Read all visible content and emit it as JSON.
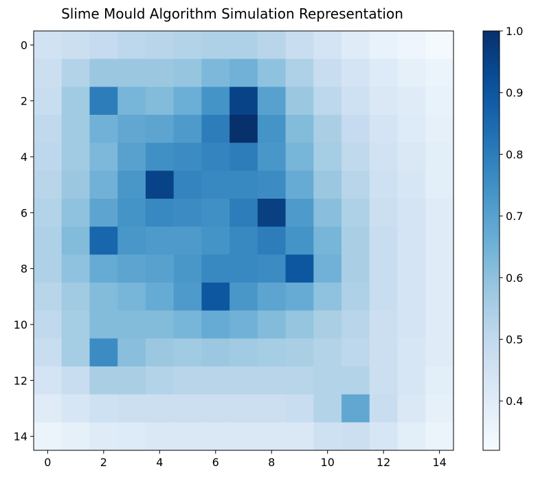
{
  "chart_data": {
    "type": "heatmap",
    "title": "Slime Mould Algorithm Simulation Representation",
    "colormap": "Blues",
    "x_ticks": [
      0,
      2,
      4,
      6,
      8,
      10,
      12,
      14
    ],
    "y_ticks": [
      0,
      2,
      4,
      6,
      8,
      10,
      12,
      14
    ],
    "colorbar": {
      "range": [
        0.32,
        1.0
      ],
      "ticks": [
        "0.4",
        "0.5",
        "0.6",
        "0.7",
        "0.8",
        "0.9",
        "1.0"
      ]
    },
    "values": [
      [
        0.45,
        0.47,
        0.49,
        0.51,
        0.52,
        0.53,
        0.54,
        0.54,
        0.52,
        0.48,
        0.44,
        0.4,
        0.37,
        0.35,
        0.33
      ],
      [
        0.47,
        0.53,
        0.58,
        0.58,
        0.58,
        0.59,
        0.63,
        0.65,
        0.6,
        0.54,
        0.48,
        0.44,
        0.41,
        0.38,
        0.36
      ],
      [
        0.48,
        0.57,
        0.8,
        0.64,
        0.62,
        0.66,
        0.74,
        0.95,
        0.7,
        0.58,
        0.51,
        0.46,
        0.42,
        0.4,
        0.37
      ],
      [
        0.5,
        0.57,
        0.65,
        0.68,
        0.69,
        0.72,
        0.8,
        1.0,
        0.74,
        0.62,
        0.55,
        0.49,
        0.44,
        0.41,
        0.38
      ],
      [
        0.51,
        0.57,
        0.63,
        0.7,
        0.75,
        0.76,
        0.78,
        0.8,
        0.73,
        0.64,
        0.56,
        0.5,
        0.45,
        0.42,
        0.39
      ],
      [
        0.52,
        0.58,
        0.65,
        0.73,
        0.95,
        0.78,
        0.77,
        0.77,
        0.76,
        0.67,
        0.58,
        0.52,
        0.46,
        0.43,
        0.39
      ],
      [
        0.53,
        0.6,
        0.69,
        0.74,
        0.77,
        0.76,
        0.75,
        0.8,
        0.96,
        0.72,
        0.61,
        0.54,
        0.47,
        0.44,
        0.4
      ],
      [
        0.54,
        0.62,
        0.86,
        0.73,
        0.72,
        0.72,
        0.74,
        0.77,
        0.8,
        0.74,
        0.64,
        0.55,
        0.48,
        0.44,
        0.4
      ],
      [
        0.54,
        0.6,
        0.67,
        0.69,
        0.7,
        0.73,
        0.77,
        0.77,
        0.76,
        0.9,
        0.65,
        0.55,
        0.48,
        0.44,
        0.4
      ],
      [
        0.52,
        0.57,
        0.62,
        0.64,
        0.67,
        0.72,
        0.9,
        0.73,
        0.69,
        0.67,
        0.6,
        0.54,
        0.48,
        0.44,
        0.4
      ],
      [
        0.5,
        0.56,
        0.62,
        0.62,
        0.62,
        0.64,
        0.67,
        0.65,
        0.62,
        0.59,
        0.55,
        0.52,
        0.47,
        0.44,
        0.4
      ],
      [
        0.48,
        0.56,
        0.76,
        0.61,
        0.58,
        0.57,
        0.58,
        0.57,
        0.56,
        0.55,
        0.53,
        0.51,
        0.47,
        0.43,
        0.4
      ],
      [
        0.44,
        0.48,
        0.55,
        0.55,
        0.53,
        0.52,
        0.52,
        0.52,
        0.52,
        0.52,
        0.53,
        0.53,
        0.47,
        0.43,
        0.39
      ],
      [
        0.4,
        0.43,
        0.46,
        0.47,
        0.47,
        0.47,
        0.47,
        0.47,
        0.47,
        0.48,
        0.53,
        0.68,
        0.48,
        0.42,
        0.38
      ],
      [
        0.36,
        0.38,
        0.4,
        0.41,
        0.42,
        0.42,
        0.42,
        0.42,
        0.42,
        0.42,
        0.46,
        0.47,
        0.43,
        0.39,
        0.36
      ]
    ]
  }
}
